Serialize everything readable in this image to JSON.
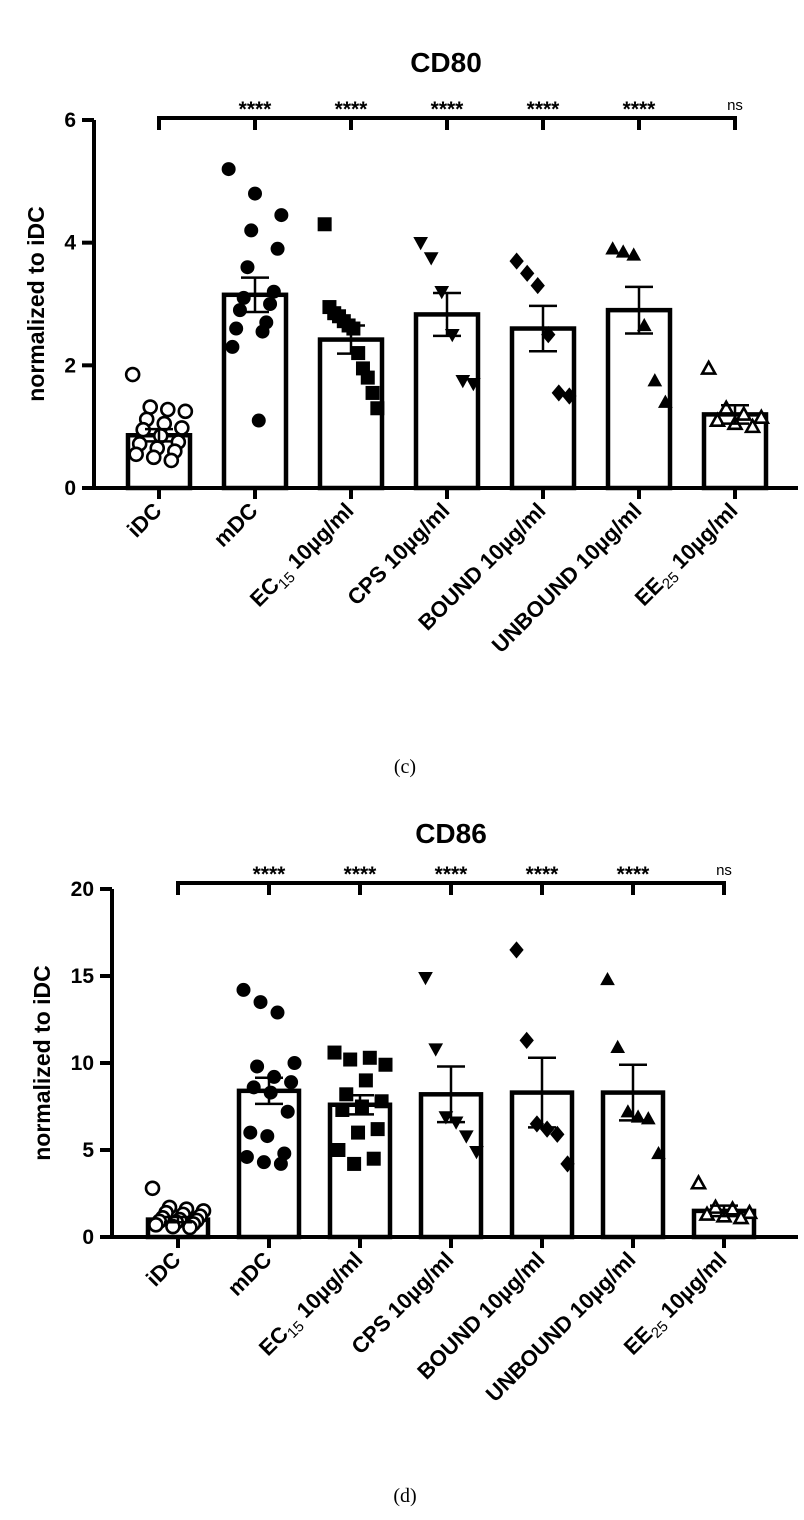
{
  "chart_data": [
    {
      "type": "bar",
      "panel": "(c)",
      "title": "CD80",
      "ylabel": "normalized to iDC",
      "ylim": [
        0,
        6
      ],
      "yticks": [
        0,
        2,
        4,
        6
      ],
      "categories": [
        {
          "main": "iDC"
        },
        {
          "main": "mDC"
        },
        {
          "main": "EC",
          "sub": "15",
          "rest": " 10µg/ml"
        },
        {
          "main": "CPS 10µg/ml"
        },
        {
          "main": "BOUND 10µg/ml"
        },
        {
          "main": "UNBOUND 10µg/ml"
        },
        {
          "main": "EE",
          "sub": "25",
          "rest": " 10µg/ml"
        }
      ],
      "values": [
        0.86,
        3.15,
        2.42,
        2.83,
        2.6,
        2.9,
        1.2
      ],
      "sem": [
        0.1,
        0.28,
        0.23,
        0.35,
        0.37,
        0.38,
        0.15
      ],
      "markers": [
        "circle-open",
        "circle",
        "square",
        "triangle-down",
        "diamond",
        "triangle",
        "triangle-open"
      ],
      "points": [
        [
          1.85,
          1.32,
          1.28,
          1.25,
          1.12,
          1.05,
          0.98,
          0.95,
          0.85,
          0.75,
          0.72,
          0.65,
          0.6,
          0.55,
          0.5,
          0.45
        ],
        [
          5.2,
          4.8,
          4.45,
          4.2,
          3.9,
          3.6,
          3.2,
          3.1,
          3.0,
          2.9,
          2.7,
          2.6,
          2.55,
          2.3,
          1.1
        ],
        [
          4.3,
          2.95,
          2.85,
          2.8,
          2.72,
          2.65,
          2.6,
          2.2,
          1.95,
          1.8,
          1.55,
          1.3
        ],
        [
          4.0,
          3.75,
          3.2,
          2.5,
          1.75,
          1.7
        ],
        [
          3.7,
          3.5,
          3.3,
          2.5,
          1.55,
          1.5
        ],
        [
          3.9,
          3.85,
          3.8,
          2.65,
          1.75,
          1.4
        ],
        [
          1.95,
          1.3,
          1.2,
          1.15,
          1.1,
          1.05,
          1.0
        ]
      ],
      "significance": [
        "****",
        "****",
        "****",
        "****",
        "****",
        "ns"
      ],
      "caption": "(c)"
    },
    {
      "type": "bar",
      "panel": "(d)",
      "title": "CD86",
      "ylabel": "normalized to iDC",
      "ylim": [
        0,
        20
      ],
      "yticks": [
        0,
        5,
        10,
        15,
        20
      ],
      "categories": [
        {
          "main": "iDC"
        },
        {
          "main": "mDC"
        },
        {
          "main": "EC",
          "sub": "15",
          "rest": " 10µg/ml"
        },
        {
          "main": "CPS 10µg/ml"
        },
        {
          "main": "BOUND 10µg/ml"
        },
        {
          "main": "UNBOUND 10µg/ml"
        },
        {
          "main": "EE",
          "sub": "25",
          "rest": " 10µg/ml"
        }
      ],
      "values": [
        1.0,
        8.4,
        7.6,
        8.2,
        8.3,
        8.3,
        1.5
      ],
      "sem": [
        0.15,
        0.75,
        0.55,
        1.6,
        2.0,
        1.6,
        0.3
      ],
      "markers": [
        "circle-open",
        "circle",
        "square",
        "triangle-down",
        "diamond",
        "triangle",
        "triangle-open"
      ],
      "points": [
        [
          2.8,
          1.7,
          1.6,
          1.5,
          1.4,
          1.3,
          1.2,
          1.1,
          1.0,
          0.95,
          0.9,
          0.85,
          0.75,
          0.7,
          0.6,
          0.55
        ],
        [
          14.2,
          13.5,
          12.9,
          10.0,
          9.8,
          9.2,
          8.9,
          8.6,
          8.3,
          7.2,
          6.0,
          5.8,
          4.8,
          4.6,
          4.3,
          4.2
        ],
        [
          10.6,
          10.3,
          10.2,
          9.9,
          9.0,
          8.2,
          7.8,
          7.5,
          7.3,
          6.2,
          6.0,
          5.0,
          4.5,
          4.2
        ],
        [
          14.9,
          10.8,
          6.9,
          6.6,
          5.8,
          4.9
        ],
        [
          16.5,
          11.3,
          6.5,
          6.2,
          5.9,
          4.2
        ],
        [
          14.8,
          10.9,
          7.2,
          6.9,
          6.8,
          4.8
        ],
        [
          3.1,
          1.7,
          1.6,
          1.4,
          1.3,
          1.2,
          1.1
        ]
      ],
      "significance": [
        "****",
        "****",
        "****",
        "****",
        "****",
        "ns"
      ],
      "caption": "(d)"
    }
  ]
}
